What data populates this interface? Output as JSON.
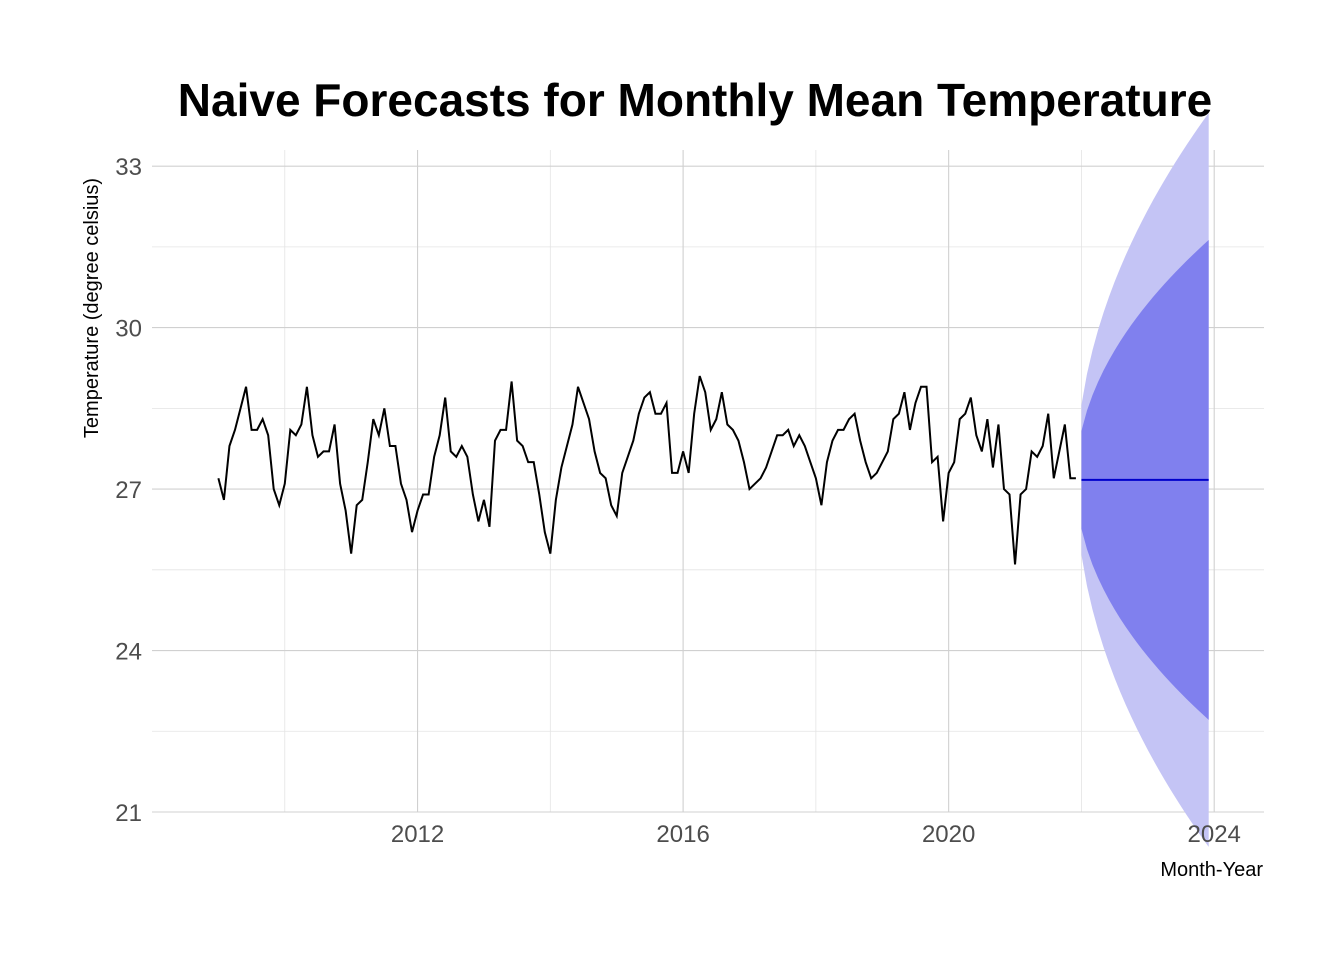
{
  "chart_data": {
    "type": "line",
    "title": "Naive Forecasts for Monthly Mean Temperature",
    "xlabel": "Month-Year",
    "ylabel": "Temperature (degree celsius)",
    "xlim": [
      2008.0,
      2024.75
    ],
    "ylim": [
      21,
      33.3
    ],
    "x_ticks": [
      2012,
      2016,
      2020,
      2024
    ],
    "y_ticks": [
      21,
      24,
      27,
      30,
      33
    ],
    "grid": true,
    "colors": {
      "history": "#000000",
      "forecast": "#0000cc",
      "band80": "#8080ee",
      "band95": "#c4c4f5",
      "grid": "#d0d0d0"
    },
    "history": {
      "start_year": 2009,
      "start_month": 1,
      "values": [
        27.2,
        26.8,
        27.8,
        28.1,
        28.5,
        28.9,
        28.1,
        28.1,
        28.3,
        28.0,
        27.0,
        26.7,
        27.1,
        28.1,
        28.0,
        28.2,
        28.9,
        28.0,
        27.6,
        27.7,
        27.7,
        28.2,
        27.1,
        26.6,
        25.8,
        26.7,
        26.8,
        27.5,
        28.3,
        28.0,
        28.5,
        27.8,
        27.8,
        27.1,
        26.8,
        26.2,
        26.6,
        26.9,
        26.9,
        27.6,
        28.0,
        28.7,
        27.7,
        27.6,
        27.8,
        27.6,
        26.9,
        26.4,
        26.8,
        26.3,
        27.9,
        28.1,
        28.1,
        29.0,
        27.9,
        27.8,
        27.5,
        27.5,
        26.9,
        26.2,
        25.8,
        26.8,
        27.4,
        27.8,
        28.2,
        28.9,
        28.6,
        28.3,
        27.7,
        27.3,
        27.2,
        26.7,
        26.5,
        27.3,
        27.6,
        27.9,
        28.4,
        28.7,
        28.8,
        28.4,
        28.4,
        28.6,
        27.3,
        27.3,
        27.7,
        27.3,
        28.4,
        29.1,
        28.8,
        28.1,
        28.3,
        28.8,
        28.2,
        28.1,
        27.9,
        27.5,
        27.0,
        27.1,
        27.2,
        27.4,
        27.7,
        28.0,
        28.0,
        28.1,
        27.8,
        28.0,
        27.8,
        27.5,
        27.2,
        26.7,
        27.5,
        27.9,
        28.1,
        28.1,
        28.3,
        28.4,
        27.9,
        27.5,
        27.2,
        27.3,
        27.5,
        27.7,
        28.3,
        28.4,
        28.8,
        28.1,
        28.6,
        28.9,
        28.9,
        27.5,
        27.6,
        26.4,
        27.3,
        27.5,
        28.3,
        28.4,
        28.7,
        28.0,
        27.7,
        28.3,
        27.4,
        28.2,
        27.0,
        26.9,
        25.6,
        26.9,
        27.0,
        27.7,
        27.6,
        27.8,
        28.4,
        27.2,
        27.7,
        28.2,
        27.2,
        27.2
      ]
    },
    "forecast": {
      "start_year": 2022,
      "start_month": 1,
      "months": 24,
      "point": 27.17,
      "sd_per_sqrt_month": 0.71,
      "z80": 1.2816,
      "z95": 1.96
    }
  }
}
